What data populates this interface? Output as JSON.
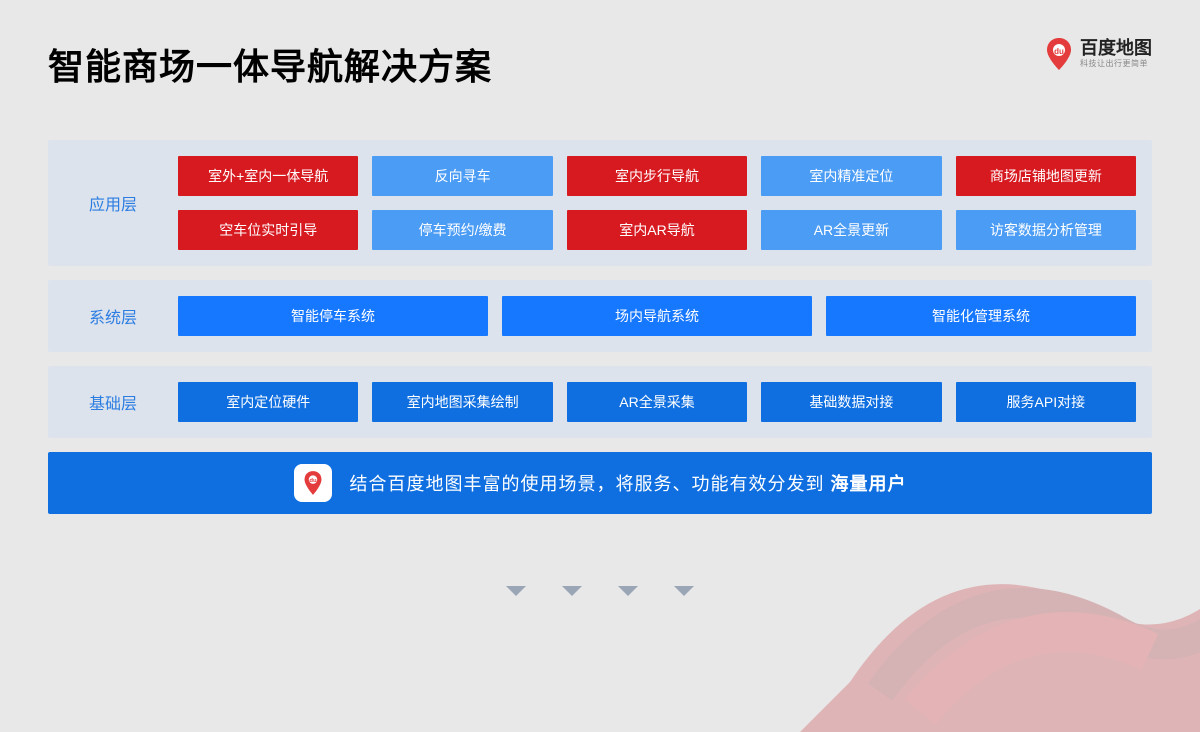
{
  "title": "智能商场一体导航解决方案",
  "logo": {
    "main": "百度地图",
    "sub": "科技让出行更简单"
  },
  "colors": {
    "red": "#d71920",
    "blue_light": "#4b9cf4",
    "blue_mid": "#1677ff",
    "blue_dark": "#0f6fe0",
    "panel_bg": "#dde3ec",
    "page_bg": "#e8e8e8",
    "label_text": "#2b7de2",
    "arrow": "#9aa6b5"
  },
  "layers": [
    {
      "label": "应用层",
      "rows": [
        [
          {
            "text": "室外+室内一体导航",
            "color": "red"
          },
          {
            "text": "反向寻车",
            "color": "blue-light"
          },
          {
            "text": "室内步行导航",
            "color": "red"
          },
          {
            "text": "室内精准定位",
            "color": "blue-light"
          },
          {
            "text": "商场店铺地图更新",
            "color": "red"
          }
        ],
        [
          {
            "text": "空车位实时引导",
            "color": "red"
          },
          {
            "text": "停车预约/缴费",
            "color": "blue-light"
          },
          {
            "text": "室内AR导航",
            "color": "red"
          },
          {
            "text": "AR全景更新",
            "color": "blue-light"
          },
          {
            "text": "访客数据分析管理",
            "color": "blue-light"
          }
        ]
      ]
    },
    {
      "label": "系统层",
      "rows": [
        [
          {
            "text": "智能停车系统",
            "color": "blue-mid"
          },
          {
            "text": "场内导航系统",
            "color": "blue-mid"
          },
          {
            "text": "智能化管理系统",
            "color": "blue-mid"
          }
        ]
      ]
    },
    {
      "label": "基础层",
      "rows": [
        [
          {
            "text": "室内定位硬件",
            "color": "blue-dark"
          },
          {
            "text": "室内地图采集绘制",
            "color": "blue-dark"
          },
          {
            "text": "AR全景采集",
            "color": "blue-dark"
          },
          {
            "text": "基础数据对接",
            "color": "blue-dark"
          },
          {
            "text": "服务API对接",
            "color": "blue-dark"
          }
        ]
      ]
    }
  ],
  "footer": {
    "prefix": "结合百度地图丰富的使用场景，将服务、功能有效分发到 ",
    "bold": "海量用户"
  },
  "arrow_count": 4
}
